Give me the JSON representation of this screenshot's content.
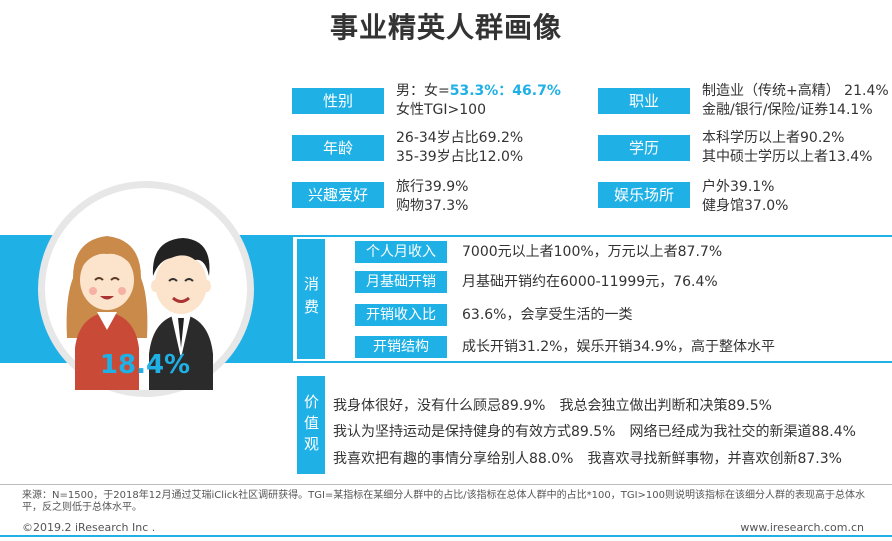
{
  "title": "事业精英人群画像",
  "profile": {
    "gender": {
      "tag": "性别",
      "line1_prefix": "男：女=",
      "line1_value": "53.3%：46.7%",
      "line2": "女性TGI>100"
    },
    "age": {
      "tag": "年龄",
      "line1": "26-34岁占比69.2%",
      "line2": "35-39岁占比12.0%"
    },
    "hobby": {
      "tag": "兴趣爱好",
      "line1": "旅行39.9%",
      "line2": "购物37.3%"
    },
    "job": {
      "tag": "职业",
      "line1": "制造业（传统+高精） 21.4%",
      "line2": "金融/银行/保险/证券14.1%"
    },
    "education": {
      "tag": "学历",
      "line1": "本科学历以上者90.2%",
      "line2": "其中硕士学历以上者13.4%"
    },
    "leisure": {
      "tag": "娱乐场所",
      "line1": "户外39.1%",
      "line2": "健身馆37.0%"
    }
  },
  "share_pct": "18.4%",
  "consumption": {
    "label": "消费",
    "rows": [
      {
        "tag": "个人月收入",
        "text": "7000元以上者100%，万元以上者87.7%"
      },
      {
        "tag": "月基础开销",
        "text": "月基础开销约在6000-11999元，76.4%"
      },
      {
        "tag": "开销收入比",
        "text": "63.6%，会享受生活的一类"
      },
      {
        "tag": "开销结构",
        "text": "成长开销31.2%，娱乐开销34.9%，高于整体水平"
      }
    ]
  },
  "values": {
    "label": "价值观",
    "rows": [
      {
        "a": "我身体很好，没有什么顾忌89.9%",
        "b": "我总会独立做出判断和决策89.5%"
      },
      {
        "a": "我认为坚持运动是保持健身的有效方式89.5%",
        "b": "网络已经成为我社交的新渠道88.4%"
      },
      {
        "a": "我喜欢把有趣的事情分享给别人88.0%",
        "b": "我喜欢寻找新鲜事物，并喜欢创新87.3%"
      }
    ]
  },
  "source_note": "来源：N=1500，于2018年12月通过艾瑞iClick社区调研获得。TGI=某指标在某细分人群中的占比/该指标在总体人群中的占比*100，TGI>100则说明该指标在该细分人群的表现高于总体水平，反之则低于总体水平。",
  "footer": {
    "copyright": "©2019.2 iResearch Inc .",
    "site": "www.iresearch.com.cn"
  },
  "colors": {
    "accent": "#1fb0e6"
  },
  "icons": {
    "illustration": "couple-illustration"
  }
}
